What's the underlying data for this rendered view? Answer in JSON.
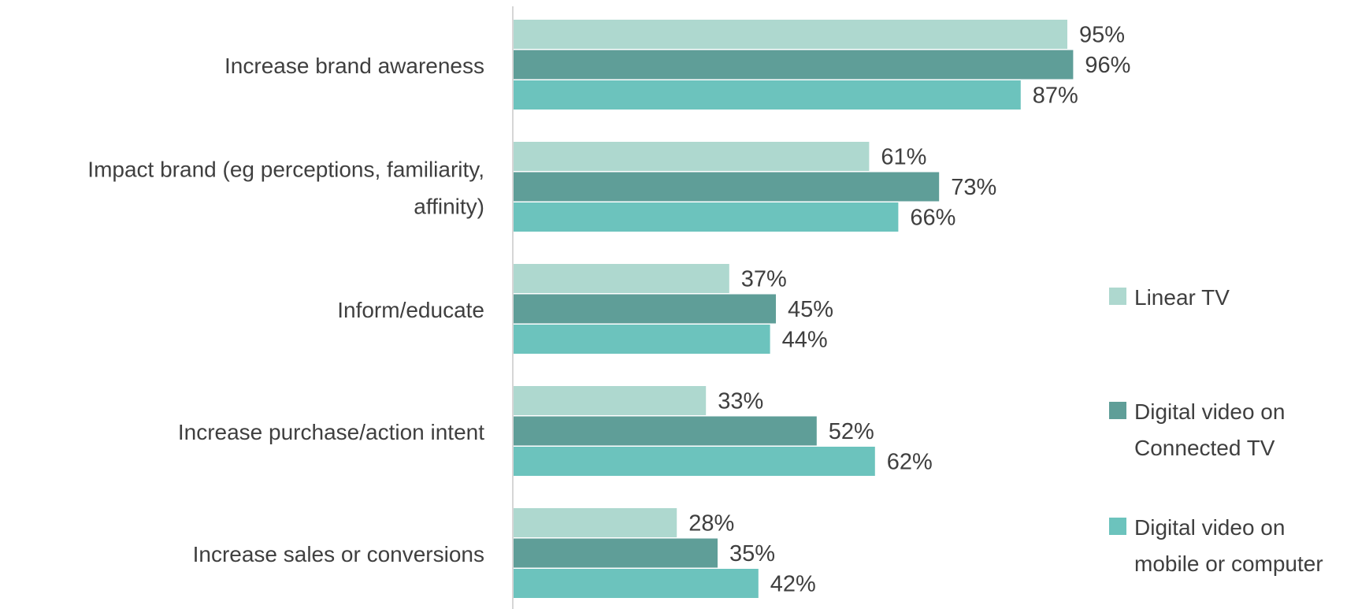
{
  "chart_data": {
    "type": "bar",
    "orientation": "horizontal",
    "title": "",
    "xlabel": "",
    "ylabel": "",
    "xlim": [
      0,
      100
    ],
    "grid": false,
    "legend_position": "right",
    "categories": [
      [
        "Increase brand awareness"
      ],
      [
        "Impact brand (eg perceptions, familiarity,",
        "affinity)"
      ],
      [
        "Inform/educate"
      ],
      [
        "Increase purchase/action intent"
      ],
      [
        "Increase sales or conversions"
      ]
    ],
    "series": [
      {
        "name": "Linear TV",
        "legend_lines": [
          "Linear TV"
        ],
        "color": "#aed8cf",
        "values": [
          95,
          61,
          37,
          33,
          28
        ],
        "labels": [
          "95%",
          "61%",
          "37%",
          "33%",
          "28%"
        ]
      },
      {
        "name": "Digital video on Connected TV",
        "legend_lines": [
          "Digital video on",
          "Connected TV"
        ],
        "color": "#5f9e98",
        "values": [
          96,
          73,
          45,
          52,
          35
        ],
        "labels": [
          "96%",
          "73%",
          "45%",
          "52%",
          "35%"
        ]
      },
      {
        "name": "Digital video on mobile or computer",
        "legend_lines": [
          "Digital video on",
          "mobile or computer"
        ],
        "color": "#6cc3bd",
        "values": [
          87,
          66,
          44,
          62,
          42
        ],
        "labels": [
          "87%",
          "66%",
          "44%",
          "62%",
          "42%"
        ]
      }
    ]
  }
}
